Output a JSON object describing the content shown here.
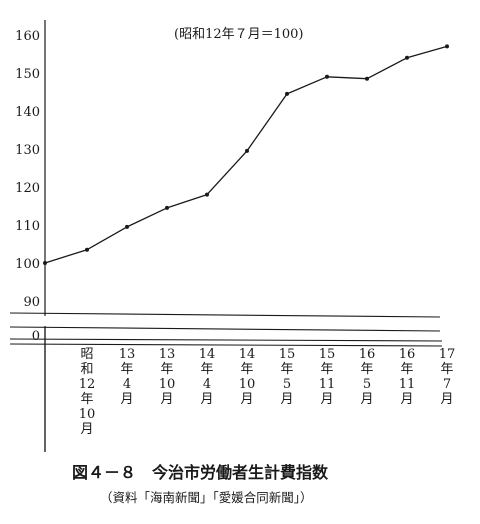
{
  "chart_data": {
    "type": "line",
    "note": "(昭和12年７月＝100)",
    "yticks": [
      160,
      150,
      140,
      130,
      120,
      110,
      100,
      90
    ],
    "zero_label": "0",
    "ylim": [
      90,
      162
    ],
    "categories": [
      "昭和12年10月",
      "13年4月",
      "13年10月",
      "14年4月",
      "14年10月",
      "15年5月",
      "15年11月",
      "16年5月",
      "16年11月",
      "17年7月"
    ],
    "category_labels": [
      [
        "昭",
        "和",
        "12",
        "年",
        "10",
        "月"
      ],
      [
        "13",
        "年",
        "4",
        "月"
      ],
      [
        "13",
        "年",
        "10",
        "月"
      ],
      [
        "14",
        "年",
        "4",
        "月"
      ],
      [
        "14",
        "年",
        "10",
        "月"
      ],
      [
        "15",
        "年",
        "5",
        "月"
      ],
      [
        "15",
        "年",
        "11",
        "月"
      ],
      [
        "16",
        "年",
        "5",
        "月"
      ],
      [
        "16",
        "年",
        "11",
        "月"
      ],
      [
        "17",
        "年",
        "7",
        "月"
      ]
    ],
    "values": [
      103.5,
      109.5,
      114.5,
      118,
      129.5,
      144.5,
      149,
      148.5,
      154,
      157
    ],
    "start_value": 100,
    "grid": false,
    "axis_break": true
  },
  "caption": {
    "title": "図４－８　今治市労働者生計費指数",
    "source": "（資料「海南新聞」「愛媛合同新聞」）"
  }
}
